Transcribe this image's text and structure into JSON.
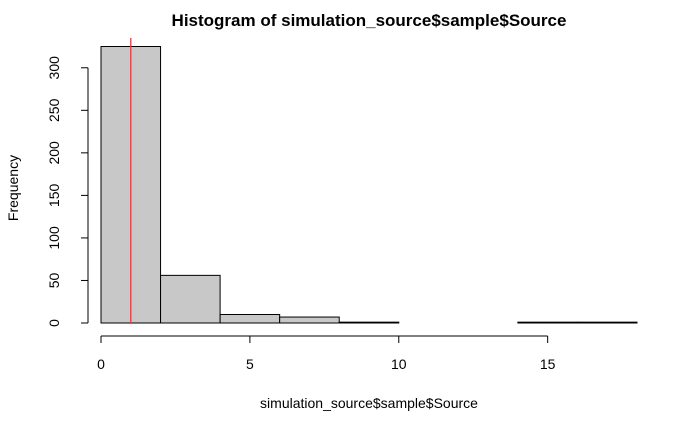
{
  "chart_data": {
    "type": "bar",
    "title": "Histogram of simulation_source$sample$Source",
    "xlabel": "simulation_source$sample$Source",
    "ylabel": "Frequency",
    "bins": [
      {
        "start": 0,
        "end": 2,
        "count": 325
      },
      {
        "start": 2,
        "end": 4,
        "count": 56
      },
      {
        "start": 4,
        "end": 6,
        "count": 10
      },
      {
        "start": 6,
        "end": 8,
        "count": 7
      },
      {
        "start": 8,
        "end": 10,
        "count": 1
      },
      {
        "start": 10,
        "end": 12,
        "count": 0
      },
      {
        "start": 12,
        "end": 14,
        "count": 0
      },
      {
        "start": 14,
        "end": 16,
        "count": 1
      },
      {
        "start": 16,
        "end": 18,
        "count": 1
      }
    ],
    "xlim": [
      0,
      18
    ],
    "ylim": [
      0,
      335
    ],
    "x_ticks": [
      0,
      5,
      10,
      15
    ],
    "y_ticks": [
      0,
      50,
      100,
      150,
      200,
      250,
      300
    ],
    "reference_line": {
      "x": 1,
      "color": "#e8383d"
    },
    "bar_color": "#c8c8c8"
  }
}
